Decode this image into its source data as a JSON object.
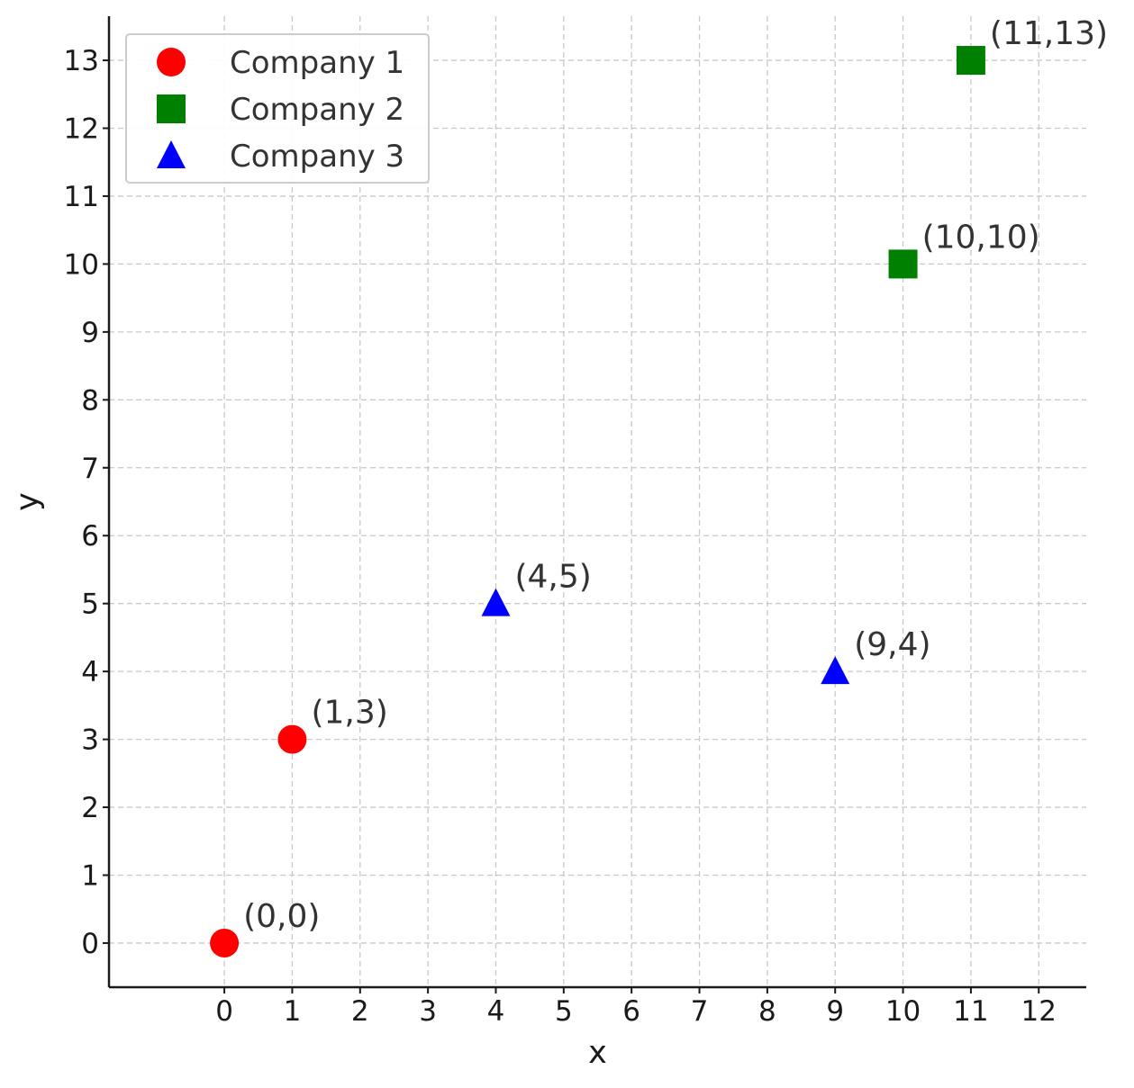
{
  "chart_data": {
    "type": "scatter",
    "title": "",
    "xlabel": "x",
    "ylabel": "y",
    "xlim": [
      -1.7,
      12.7
    ],
    "ylim": [
      -0.65,
      13.65
    ],
    "xticks": [
      "0",
      "1",
      "2",
      "3",
      "4",
      "5",
      "6",
      "7",
      "8",
      "9",
      "10",
      "11",
      "12"
    ],
    "yticks": [
      "0",
      "1",
      "2",
      "3",
      "4",
      "5",
      "6",
      "7",
      "8",
      "9",
      "10",
      "11",
      "12",
      "13"
    ],
    "grid": true,
    "legend_position": "top-left",
    "series": [
      {
        "name": "Company 1",
        "marker": "circle",
        "color": "#ff0000",
        "points": [
          {
            "x": 0,
            "y": 0,
            "label": "(0,0)"
          },
          {
            "x": 1,
            "y": 3,
            "label": "(1,3)"
          }
        ]
      },
      {
        "name": "Company 2",
        "marker": "square",
        "color": "#008000",
        "points": [
          {
            "x": 10,
            "y": 10,
            "label": "(10,10)"
          },
          {
            "x": 11,
            "y": 13,
            "label": "(11,13)"
          }
        ]
      },
      {
        "name": "Company 3",
        "marker": "triangle",
        "color": "#0000ff",
        "points": [
          {
            "x": 4,
            "y": 5,
            "label": "(4,5)"
          },
          {
            "x": 9,
            "y": 4,
            "label": "(9,4)"
          }
        ]
      }
    ]
  }
}
